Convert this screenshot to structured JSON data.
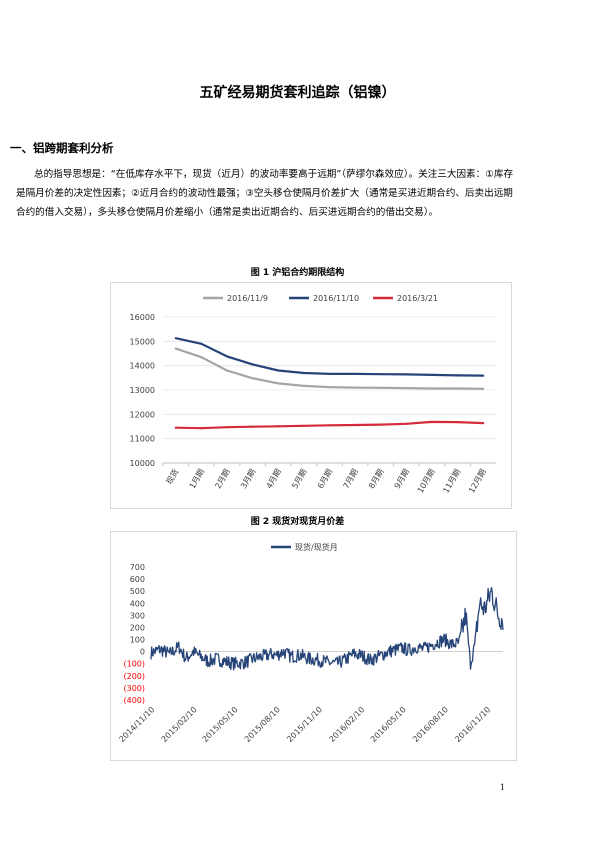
{
  "doc": {
    "title": "五矿经易期货套利追踪（铝镍）",
    "section1_heading": "一、铝跨期套利分析",
    "paragraph": "总的指导思想是：“在低库存水平下，现货（近月）的波动率要高于远期”（萨缪尔森效应）。关注三大因素：①库存是隔月价差的决定性因素；②近月合约的波动性最强；③空头移仓使隔月价差扩大（通常是买进近期合约、后卖出远期合约的借入交易），多头移仓使隔月价差缩小（通常是卖出近期合约、后买进远期合约的借出交易）。",
    "page_number": "1"
  },
  "figure1": {
    "title": "图 1  沪铝合约期限结构"
  },
  "figure2": {
    "title": "图 2  现货对现货月价差"
  },
  "chart_data": [
    {
      "type": "line",
      "categories": [
        "现货",
        "1月期",
        "2月期",
        "3月期",
        "4月期",
        "5月期",
        "6月期",
        "7月期",
        "8月期",
        "9月期",
        "10月期",
        "11月期",
        "12月期"
      ],
      "ylim": [
        10000,
        16000
      ],
      "yticks": [
        "16000",
        "15000",
        "14000",
        "13000",
        "12000",
        "11000",
        "10000"
      ],
      "legend_position": "top",
      "series": [
        {
          "name": "2016/11/9",
          "color": "#a5a5a5",
          "values": [
            14700,
            14350,
            13800,
            13480,
            13270,
            13170,
            13120,
            13100,
            13090,
            13080,
            13060,
            13060,
            13050
          ]
        },
        {
          "name": "2016/11/10",
          "color": "#264478",
          "values": [
            15130,
            14900,
            14380,
            14050,
            13800,
            13700,
            13660,
            13660,
            13650,
            13640,
            13620,
            13600,
            13590
          ]
        },
        {
          "name": "2016/3/21",
          "color": "#d42b3a",
          "values": [
            11450,
            11430,
            11470,
            11490,
            11510,
            11530,
            11550,
            11560,
            11580,
            11610,
            11690,
            11680,
            11640
          ]
        }
      ]
    },
    {
      "type": "line",
      "x_range": [
        "2014/11/10",
        "2016/12/15"
      ],
      "xticks": [
        "2014/11/10",
        "2015/02/10",
        "2015/05/10",
        "2015/08/10",
        "2015/11/10",
        "2016/02/10",
        "2016/05/10",
        "2016/08/10",
        "2016/11/10"
      ],
      "ylim": [
        -400,
        700
      ],
      "yticks": [
        "700",
        "600",
        "500",
        "400",
        "300",
        "200",
        "100",
        "0",
        "(100)",
        "(200)",
        "(300)",
        "(400)"
      ],
      "negative_tick_color": "#ff0000",
      "legend_position": "top",
      "series": [
        {
          "name": "现货/现货月",
          "color": "#264478",
          "anchors": [
            [
              "2014/11/10",
              -10
            ],
            [
              "2014/12/01",
              20
            ],
            [
              "2014/12/20",
              -20
            ],
            [
              "2015/01/10",
              40
            ],
            [
              "2015/01/25",
              -60
            ],
            [
              "2015/02/10",
              0
            ],
            [
              "2015/02/25",
              -40
            ],
            [
              "2015/03/15",
              -80
            ],
            [
              "2015/04/01",
              -60
            ],
            [
              "2015/04/20",
              -80
            ],
            [
              "2015/05/10",
              -100
            ],
            [
              "2015/06/01",
              -90
            ],
            [
              "2015/06/20",
              -60
            ],
            [
              "2015/07/10",
              -40
            ],
            [
              "2015/08/01",
              -20
            ],
            [
              "2015/08/10",
              -30
            ],
            [
              "2015/08/25",
              0
            ],
            [
              "2015/09/10",
              -40
            ],
            [
              "2015/10/01",
              -30
            ],
            [
              "2015/10/20",
              -60
            ],
            [
              "2015/11/10",
              -70
            ],
            [
              "2015/12/01",
              -90
            ],
            [
              "2015/12/20",
              -100
            ],
            [
              "2016/01/10",
              -60
            ],
            [
              "2016/01/25",
              -20
            ],
            [
              "2016/02/10",
              -30
            ],
            [
              "2016/03/01",
              -70
            ],
            [
              "2016/03/20",
              -40
            ],
            [
              "2016/04/10",
              0
            ],
            [
              "2016/05/01",
              20
            ],
            [
              "2016/05/10",
              30
            ],
            [
              "2016/05/25",
              10
            ],
            [
              "2016/06/10",
              40
            ],
            [
              "2016/06/25",
              20
            ],
            [
              "2016/07/10",
              50
            ],
            [
              "2016/07/25",
              80
            ],
            [
              "2016/08/10",
              100
            ],
            [
              "2016/08/25",
              60
            ],
            [
              "2016/09/10",
              70
            ],
            [
              "2016/09/25",
              300
            ],
            [
              "2016/10/05",
              -100
            ],
            [
              "2016/10/15",
              60
            ],
            [
              "2016/10/25",
              400
            ],
            [
              "2016/11/05",
              350
            ],
            [
              "2016/11/20",
              500
            ],
            [
              "2016/12/05",
              300
            ],
            [
              "2016/12/15",
              270
            ]
          ]
        }
      ]
    }
  ]
}
